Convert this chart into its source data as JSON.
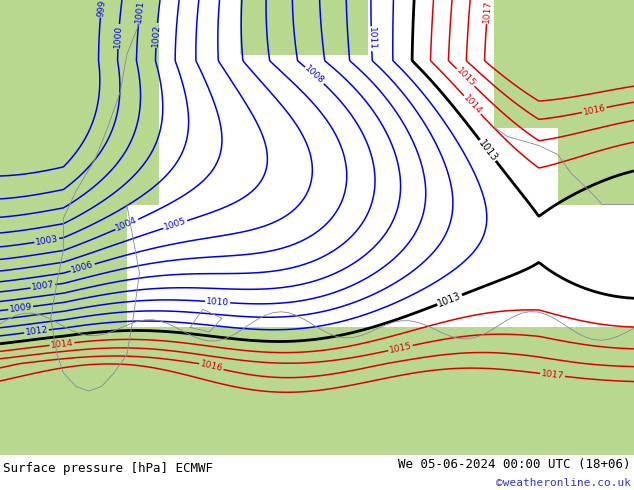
{
  "title_left": "Surface pressure [hPa] ECMWF",
  "title_right": "We 05-06-2024 00:00 UTC (18+06)",
  "watermark": "©weatheronline.co.uk",
  "sea_color": "#c8c8d4",
  "land_color_green": "#b8d890",
  "land_color_gray": "#c0c0c8",
  "blue_contour_color": "#0000ee",
  "black_contour_color": "#000000",
  "red_contour_color": "#dd0000",
  "contour_levels_blue": [
    999,
    1000,
    1001,
    1002,
    1003,
    1004,
    1005,
    1006,
    1007,
    1008,
    1009,
    1010,
    1011,
    1012
  ],
  "contour_levels_black": [
    1013
  ],
  "contour_levels_red": [
    1014,
    1015,
    1016,
    1017
  ],
  "title_fontsize": 9,
  "watermark_color": "#3333cc",
  "watermark_fontsize": 8
}
